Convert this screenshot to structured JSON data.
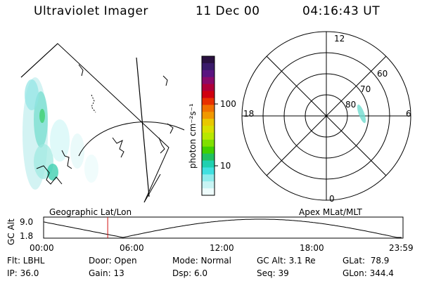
{
  "header": {
    "title": "Ultraviolet Imager",
    "date": "11 Dec 00",
    "time": "04:16:43 UT"
  },
  "colorbar": {
    "label": "photon cm⁻²s⁻¹",
    "ticks": [
      "100",
      "10"
    ],
    "colors": [
      "#2a1040",
      "#3a1a6a",
      "#5a1480",
      "#8a0a6a",
      "#b0003a",
      "#d00010",
      "#e83000",
      "#f07000",
      "#f09800",
      "#e8c800",
      "#d8e000",
      "#b8e800",
      "#80e000",
      "#40d000",
      "#20c060",
      "#20d0b0",
      "#40e0e0",
      "#90ecec",
      "#c8f4f4",
      "#eefcfc"
    ]
  },
  "polar": {
    "mlt_labels": [
      "12",
      "18",
      "6",
      "0"
    ],
    "lat_labels": [
      "60",
      "70",
      "80"
    ]
  },
  "geo_label": "Geographic Lat/Lon",
  "apex_label": "Apex MLat/MLT",
  "gc_alt": {
    "axis_label": "GC Alt",
    "y_ticks": [
      "9.0",
      "1.8"
    ],
    "x_ticks": [
      "00:00",
      "06:00",
      "12:00",
      "18:00",
      "23:59"
    ],
    "marker_hour": 4.28
  },
  "info": {
    "flt": "Flt: LBHL",
    "ip": "IP: 36.0",
    "door": "Door: Open",
    "gain": "Gain: 13",
    "mode": "Mode: Normal",
    "dsp": "Dsp:     6.0",
    "gcalt": "GC Alt: 3.1 Re",
    "seq": "Seq: 39",
    "glat": "GLat:  78.9",
    "glon": "GLon: 344.4"
  }
}
